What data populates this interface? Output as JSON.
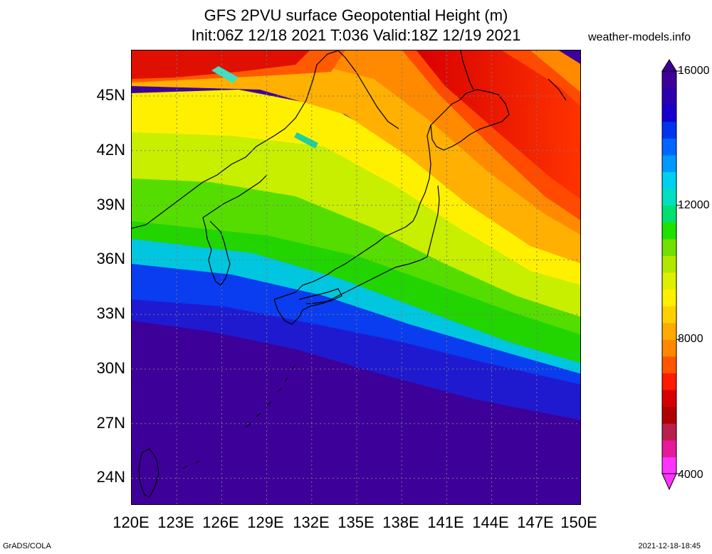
{
  "title_line1": "GFS 2PVU surface Geopotential Height (m)",
  "title_line2": "Init:06Z 12/18 2021 T:036 Valid:18Z 12/19 2021",
  "site": "weather-models.info",
  "footer_left": "GrADS/COLA",
  "footer_right": "2021-12-18-18:45",
  "map": {
    "lon_range": [
      120,
      150
    ],
    "lat_range": [
      22.5,
      47.5
    ],
    "grid": "dotted",
    "lat_ticks": [
      "45N",
      "42N",
      "39N",
      "36N",
      "33N",
      "30N",
      "27N",
      "24N"
    ],
    "lon_ticks": [
      "120E",
      "123E",
      "126E",
      "129E",
      "132E",
      "135E",
      "138E",
      "141E",
      "144E",
      "147E",
      "150E"
    ]
  },
  "colorbar": {
    "labels": [
      "16000",
      "12000",
      "8000",
      "4000"
    ],
    "min": 4000,
    "max": 16000,
    "colors": [
      "#ff33ff",
      "#e6199a",
      "#b81f4d",
      "#b00000",
      "#d60000",
      "#ff1a00",
      "#ff5500",
      "#ff8800",
      "#ffaa00",
      "#ffd000",
      "#fff000",
      "#ddf000",
      "#b0e800",
      "#70e000",
      "#20e000",
      "#00e070",
      "#00e0c0",
      "#00d0f0",
      "#0099ff",
      "#0066ff",
      "#0033f0",
      "#1500d0",
      "#2a00b0",
      "#3d0099"
    ]
  }
}
